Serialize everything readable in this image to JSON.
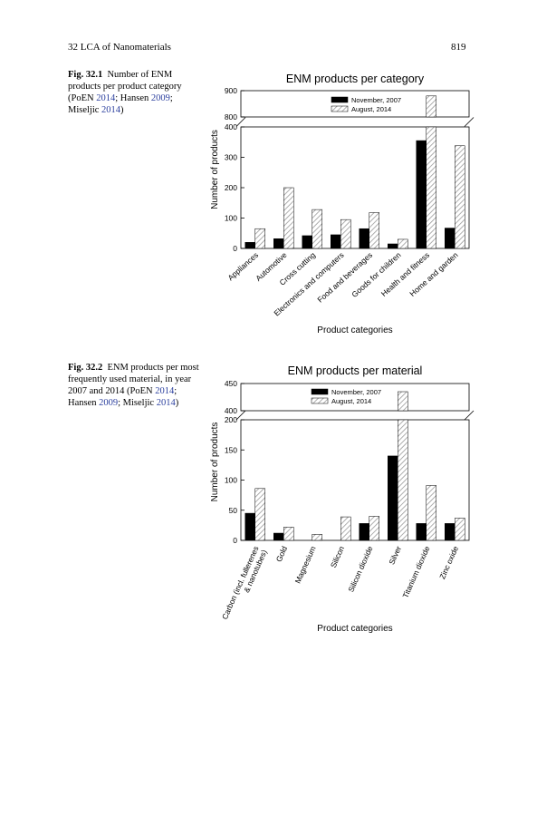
{
  "header": {
    "chapter": "32   LCA of Nanomaterials",
    "page": "819"
  },
  "figures": [
    {
      "fig_label": "Fig. 32.1",
      "caption_text": "Number of ENM products per product category (",
      "cites": [
        [
          "PoEN ",
          "2014",
          "; "
        ],
        [
          "Hansen ",
          "2009",
          ";"
        ],
        [
          "Miseljic ",
          "2014",
          ")"
        ]
      ]
    },
    {
      "fig_label": "Fig. 32.2",
      "caption_text": "ENM products per most frequently used material, in year 2007 and 2014 (",
      "cites": [
        [
          "PoEN ",
          "2014",
          "; "
        ],
        [
          "Hansen ",
          "2009",
          "; "
        ],
        [
          "Miseljic ",
          "2014",
          ")"
        ]
      ]
    }
  ],
  "chart_data": [
    {
      "type": "bar",
      "title": "ENM products per category",
      "xlabel": "Product categories",
      "ylabel": "Number of products",
      "broken_axis": true,
      "lower_ylim": [
        0,
        400
      ],
      "upper_ylim": [
        800,
        900
      ],
      "yticks_lower": [
        0,
        100,
        200,
        300,
        400
      ],
      "yticks_upper": [
        800,
        900
      ],
      "categories": [
        "Appliances",
        "Automotive",
        "Cross cutting",
        "Electronics and computers",
        "Food and beverages",
        "Goods for children",
        "Health and fitness",
        "Home and garden"
      ],
      "series": [
        {
          "name": "November, 2007",
          "fill": "solid",
          "color": "#000000",
          "values": [
            20,
            32,
            42,
            45,
            65,
            15,
            355,
            67
          ]
        },
        {
          "name": "August, 2014",
          "fill": "hatch",
          "color": "#9a9a9a",
          "values": [
            65,
            200,
            128,
            95,
            118,
            30,
            880,
            338
          ]
        }
      ],
      "legend": "top-right",
      "grid": false
    },
    {
      "type": "bar",
      "title": "ENM products per material",
      "xlabel": "Product categories",
      "ylabel": "Number of products",
      "broken_axis": true,
      "lower_ylim": [
        0,
        200
      ],
      "upper_ylim": [
        400,
        450
      ],
      "yticks_lower": [
        0,
        50,
        100,
        150,
        200
      ],
      "yticks_upper": [
        400,
        450
      ],
      "categories": [
        "Carbon (incl. fullerenes & nanotubes)",
        "Gold",
        "Magnesium",
        "Silicon",
        "Silicon dioxide",
        "Silver",
        "Titanium dioxide",
        "Zinc oxide"
      ],
      "series": [
        {
          "name": "November, 2007",
          "fill": "solid",
          "color": "#000000",
          "values": [
            45,
            12,
            0,
            0,
            28,
            140,
            28,
            28
          ]
        },
        {
          "name": "August, 2014",
          "fill": "hatch",
          "color": "#9a9a9a",
          "values": [
            86,
            22,
            10,
            39,
            40,
            435,
            91,
            37
          ]
        }
      ],
      "legend": "top-right",
      "grid": false
    }
  ]
}
